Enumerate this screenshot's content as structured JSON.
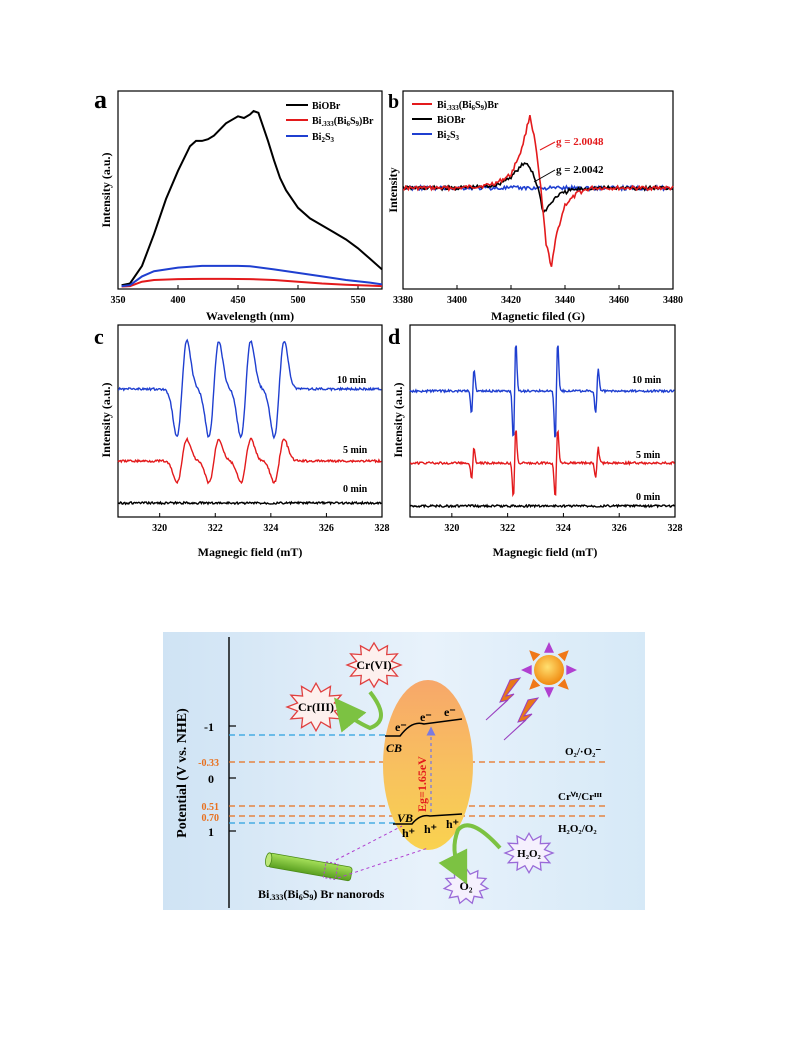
{
  "chart_data": [
    {
      "panel": "a",
      "type": "line",
      "xlabel": "Wavelength (nm)",
      "ylabel": "Intensity (a.u.)",
      "xlim": [
        350,
        570
      ],
      "xticks": [
        "350",
        "400",
        "450",
        "500",
        "550"
      ],
      "legend": "top-right",
      "series": [
        {
          "name": "BiOBr",
          "color": "#000000",
          "x": [
            353,
            360,
            370,
            380,
            390,
            400,
            410,
            415,
            420,
            425,
            430,
            440,
            450,
            455,
            460,
            463,
            467,
            470,
            475,
            480,
            485,
            490,
            500,
            510,
            520,
            530,
            540,
            550,
            560,
            570
          ],
          "y": [
            0.01,
            0.02,
            0.12,
            0.3,
            0.5,
            0.66,
            0.8,
            0.83,
            0.83,
            0.84,
            0.86,
            0.93,
            0.97,
            0.96,
            0.98,
            1.0,
            0.99,
            0.93,
            0.83,
            0.72,
            0.62,
            0.55,
            0.45,
            0.39,
            0.35,
            0.31,
            0.27,
            0.22,
            0.16,
            0.1
          ]
        },
        {
          "name": "Bi.333(Bi6S9)Br",
          "color": "#e31a1c",
          "x": [
            353,
            360,
            370,
            380,
            400,
            420,
            440,
            460,
            480,
            500,
            520,
            540,
            560,
            570
          ],
          "y": [
            0.003,
            0.005,
            0.03,
            0.04,
            0.045,
            0.046,
            0.046,
            0.045,
            0.04,
            0.03,
            0.02,
            0.013,
            0.008,
            0.005
          ]
        },
        {
          "name": "Bi2S3",
          "color": "#1f3fd0",
          "x": [
            353,
            360,
            370,
            380,
            400,
            420,
            440,
            450,
            460,
            480,
            500,
            520,
            540,
            560,
            570
          ],
          "y": [
            0.005,
            0.01,
            0.06,
            0.09,
            0.11,
            0.12,
            0.12,
            0.12,
            0.118,
            0.1,
            0.08,
            0.06,
            0.04,
            0.025,
            0.015
          ]
        }
      ]
    },
    {
      "panel": "b",
      "type": "line",
      "xlabel": "Magnetic filed (G)",
      "ylabel": "Intensity",
      "xlim": [
        3380,
        3480
      ],
      "xticks": [
        "3380",
        "3400",
        "3420",
        "3440",
        "3460",
        "3480"
      ],
      "legend": "top-left",
      "series": [
        {
          "name": "Bi.333(Bi6S9)Br",
          "color": "#e31a1c",
          "x": [
            3380,
            3400,
            3410,
            3415,
            3420,
            3424,
            3427,
            3429,
            3431,
            3433,
            3435,
            3437,
            3440,
            3445,
            3450,
            3460,
            3480
          ],
          "y": [
            0,
            0,
            0.02,
            0.05,
            0.12,
            0.35,
            0.65,
            0.4,
            0.0,
            -0.5,
            -0.7,
            -0.4,
            -0.15,
            -0.04,
            0,
            0,
            0
          ]
        },
        {
          "name": "BiOBr",
          "color": "#000000",
          "x": [
            3380,
            3400,
            3410,
            3415,
            3420,
            3424,
            3426,
            3428,
            3430,
            3432,
            3434,
            3437,
            3442,
            3450
          ],
          "y": [
            0,
            0,
            0.01,
            0.03,
            0.1,
            0.2,
            0.22,
            0.14,
            0.0,
            -0.22,
            -0.16,
            -0.07,
            -0.02,
            0
          ]
        },
        {
          "name": "Bi2S3",
          "color": "#1f3fd0",
          "x": [
            3380,
            3480
          ],
          "y": [
            0,
            0
          ]
        }
      ],
      "annotations": [
        {
          "text": "g = 2.0048",
          "color": "#e31a1c"
        },
        {
          "text": "g = 2.0042",
          "color": "#000000"
        }
      ]
    },
    {
      "panel": "c",
      "type": "line",
      "xlabel": "Magnegic field (mT)",
      "ylabel": "Intensity (a.u.)",
      "xlim": [
        318.5,
        328
      ],
      "xticks": [
        "320",
        "322",
        "324",
        "326",
        "328"
      ],
      "peaks": [
        320.8,
        321.95,
        323.1,
        324.3
      ],
      "series": [
        {
          "name": "10 min",
          "color": "#1f3fd0",
          "amplitude": 1.0
        },
        {
          "name": "5 min",
          "color": "#e31a1c",
          "amplitude": 0.45
        },
        {
          "name": "0 min",
          "color": "#000000",
          "amplitude": 0
        }
      ]
    },
    {
      "panel": "d",
      "type": "line",
      "xlabel": "Magnegic field (mT)",
      "ylabel": "Intensity (a.u.)",
      "xlim": [
        318.5,
        328
      ],
      "xticks": [
        "320",
        "322",
        "324",
        "326",
        "328"
      ],
      "peaks": [
        320.75,
        322.25,
        323.75,
        325.2
      ],
      "heights": [
        0.45,
        1.0,
        1.0,
        0.45
      ],
      "series": [
        {
          "name": "10 min",
          "color": "#1f3fd0",
          "amplitude": 1.0
        },
        {
          "name": "5 min",
          "color": "#e31a1c",
          "amplitude": 0.7
        },
        {
          "name": "0 min",
          "color": "#000000",
          "amplitude": 0
        }
      ]
    }
  ],
  "diagram": {
    "axis_label": "Potential (V vs. NHE)",
    "ticks": [
      "-1",
      "0",
      "1"
    ],
    "orange_levels": [
      "-0.33",
      "0.51",
      "0.70"
    ],
    "level_labels": {
      "o2": "O₂/·O₂⁻",
      "cr": "Crⱽᴵ/Crᴵᴵᴵ",
      "h2o2": "H₂O₂/O₂"
    },
    "cb": "CB",
    "vb": "VB",
    "electron": "e⁻",
    "hole": "h⁺",
    "band_gap_label": "Eg=1.65eV",
    "bursts": {
      "cr6": "Cr(VI)",
      "cr3": "Cr(III)",
      "h2o2": "H₂O₂",
      "o2": "O₂"
    },
    "nanorod_label": "Bi.333(Bi6S9)Br  nanorods"
  }
}
